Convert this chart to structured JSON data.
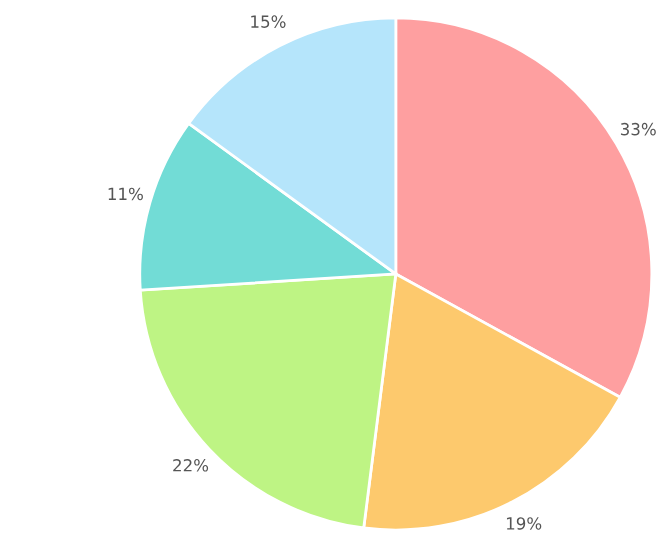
{
  "chart_data": {
    "type": "pie",
    "categories": [
      null,
      null,
      null,
      null,
      null
    ],
    "values": [
      33,
      19,
      22,
      11,
      15
    ],
    "colors": [
      "#fe9fa0",
      "#fdc96d",
      "#bef484",
      "#72dcd6",
      "#b5e5fb"
    ],
    "value_labels": [
      "33%",
      "19%",
      "22%",
      "11%",
      "15%"
    ]
  }
}
